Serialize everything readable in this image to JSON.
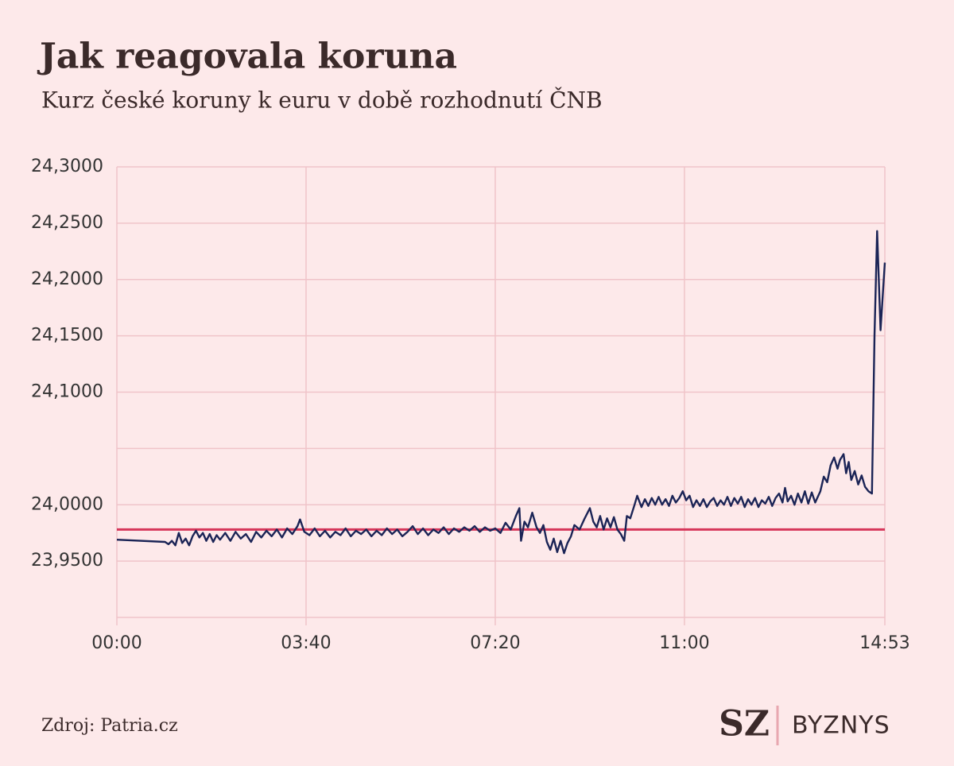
{
  "chart_data": {
    "type": "line",
    "title": "Jak reagovala koruna",
    "subtitle": "Kurz české koruny k euru v době rozhodnutí ČNB",
    "source": "Zdroj: Patria.cz",
    "brand": {
      "mark": "SZ",
      "section": "BYZNYS"
    },
    "xlim": [
      "00:00",
      "14:53"
    ],
    "xticks": [
      "00:00",
      "03:40",
      "07:20",
      "11:00",
      "14:53"
    ],
    "ylim": [
      23.9,
      24.3
    ],
    "yticks": [
      {
        "value": 24.3,
        "label": "24,3000"
      },
      {
        "value": 24.25,
        "label": "24,2500"
      },
      {
        "value": 24.2,
        "label": "24,2000"
      },
      {
        "value": 24.15,
        "label": "24,1500"
      },
      {
        "value": 24.1,
        "label": "24,1000"
      },
      {
        "value": 24.0,
        "label": "24,0000"
      },
      {
        "value": 23.95,
        "label": "23,9500"
      }
    ],
    "ygrid": [
      23.9,
      23.95,
      24.0,
      24.05,
      24.1,
      24.15,
      24.2,
      24.25,
      24.3
    ],
    "grid": true,
    "reference_line": {
      "value": 23.978,
      "color": "#d6365a"
    },
    "series": [
      {
        "color": "#1b2456",
        "x": [
          "00:00",
          "00:56",
          "01:00",
          "01:04",
          "01:08",
          "01:12",
          "01:16",
          "01:20",
          "01:24",
          "01:28",
          "01:32",
          "01:36",
          "01:40",
          "01:44",
          "01:48",
          "01:52",
          "01:56",
          "02:00",
          "02:06",
          "02:12",
          "02:18",
          "02:24",
          "02:30",
          "02:36",
          "02:42",
          "02:48",
          "02:54",
          "03:00",
          "03:06",
          "03:12",
          "03:18",
          "03:24",
          "03:30",
          "03:33",
          "03:38",
          "03:44",
          "03:50",
          "03:56",
          "04:02",
          "04:08",
          "04:14",
          "04:20",
          "04:26",
          "04:32",
          "04:38",
          "04:44",
          "04:50",
          "04:56",
          "05:02",
          "05:08",
          "05:14",
          "05:20",
          "05:26",
          "05:32",
          "05:38",
          "05:44",
          "05:50",
          "05:56",
          "06:02",
          "06:08",
          "06:14",
          "06:20",
          "06:26",
          "06:32",
          "06:38",
          "06:44",
          "06:50",
          "06:56",
          "07:02",
          "07:08",
          "07:14",
          "07:20",
          "07:26",
          "07:32",
          "07:38",
          "07:44",
          "07:48",
          "07:50",
          "07:54",
          "07:58",
          "08:03",
          "08:08",
          "08:12",
          "08:16",
          "08:20",
          "08:24",
          "08:28",
          "08:32",
          "08:36",
          "08:40",
          "08:44",
          "08:48",
          "08:52",
          "08:58",
          "09:04",
          "09:10",
          "09:14",
          "09:18",
          "09:22",
          "09:26",
          "09:30",
          "09:34",
          "09:38",
          "09:42",
          "09:46",
          "09:50",
          "09:53",
          "09:57",
          "10:02",
          "10:05",
          "10:10",
          "10:14",
          "10:18",
          "10:22",
          "10:26",
          "10:30",
          "10:34",
          "10:38",
          "10:42",
          "10:46",
          "10:50",
          "10:54",
          "10:58",
          "11:02",
          "11:06",
          "11:10",
          "11:14",
          "11:18",
          "11:22",
          "11:26",
          "11:30",
          "11:34",
          "11:38",
          "11:42",
          "11:46",
          "11:50",
          "11:54",
          "11:58",
          "12:02",
          "12:06",
          "12:10",
          "12:14",
          "12:18",
          "12:22",
          "12:26",
          "12:30",
          "12:34",
          "12:38",
          "12:42",
          "12:46",
          "12:50",
          "12:54",
          "12:57",
          "13:00",
          "13:04",
          "13:08",
          "13:12",
          "13:16",
          "13:20",
          "13:24",
          "13:28",
          "13:32",
          "13:38",
          "13:42",
          "13:46",
          "13:50",
          "13:54",
          "13:58",
          "14:01",
          "14:05",
          "14:08",
          "14:11",
          "14:14",
          "14:18",
          "14:22",
          "14:26",
          "14:30",
          "14:34",
          "14:38",
          "14:41",
          "14:44",
          "14:48",
          "14:53"
        ],
        "values": [
          23.969,
          23.967,
          23.965,
          23.968,
          23.964,
          23.975,
          23.966,
          23.97,
          23.964,
          23.972,
          23.977,
          23.971,
          23.975,
          23.968,
          23.974,
          23.967,
          23.973,
          23.969,
          23.975,
          23.968,
          23.976,
          23.97,
          23.974,
          23.967,
          23.976,
          23.971,
          23.977,
          23.972,
          23.978,
          23.971,
          23.979,
          23.974,
          23.981,
          23.987,
          23.976,
          23.973,
          23.979,
          23.972,
          23.977,
          23.971,
          23.976,
          23.973,
          23.979,
          23.972,
          23.977,
          23.974,
          23.978,
          23.972,
          23.977,
          23.973,
          23.979,
          23.974,
          23.978,
          23.972,
          23.976,
          23.981,
          23.974,
          23.979,
          23.973,
          23.978,
          23.975,
          23.98,
          23.974,
          23.979,
          23.976,
          23.98,
          23.977,
          23.981,
          23.976,
          23.98,
          23.977,
          23.979,
          23.975,
          23.984,
          23.978,
          23.99,
          23.997,
          23.968,
          23.985,
          23.98,
          23.993,
          23.98,
          23.975,
          23.982,
          23.967,
          23.96,
          23.97,
          23.958,
          23.968,
          23.957,
          23.966,
          23.972,
          23.982,
          23.978,
          23.988,
          23.997,
          23.985,
          23.98,
          23.99,
          23.978,
          23.988,
          23.98,
          23.989,
          23.978,
          23.974,
          23.968,
          23.99,
          23.988,
          24.0,
          24.008,
          23.998,
          24.005,
          23.999,
          24.006,
          24.0,
          24.007,
          24.0,
          24.005,
          23.999,
          24.008,
          24.002,
          24.006,
          24.012,
          24.004,
          24.008,
          23.998,
          24.004,
          23.999,
          24.005,
          23.998,
          24.003,
          24.006,
          23.999,
          24.004,
          24.0,
          24.007,
          23.999,
          24.006,
          24.001,
          24.007,
          23.998,
          24.005,
          24.0,
          24.006,
          23.998,
          24.004,
          24.001,
          24.007,
          23.999,
          24.006,
          24.01,
          24.002,
          24.015,
          24.003,
          24.008,
          24.0,
          24.01,
          24.002,
          24.012,
          24.001,
          24.011,
          24.002,
          24.012,
          24.025,
          24.02,
          24.035,
          24.042,
          24.032,
          24.04,
          24.045,
          24.028,
          24.038,
          24.022,
          24.03,
          24.018,
          24.026,
          24.016,
          24.012,
          24.01,
          24.15,
          24.243,
          24.155,
          24.215
        ]
      }
    ]
  }
}
